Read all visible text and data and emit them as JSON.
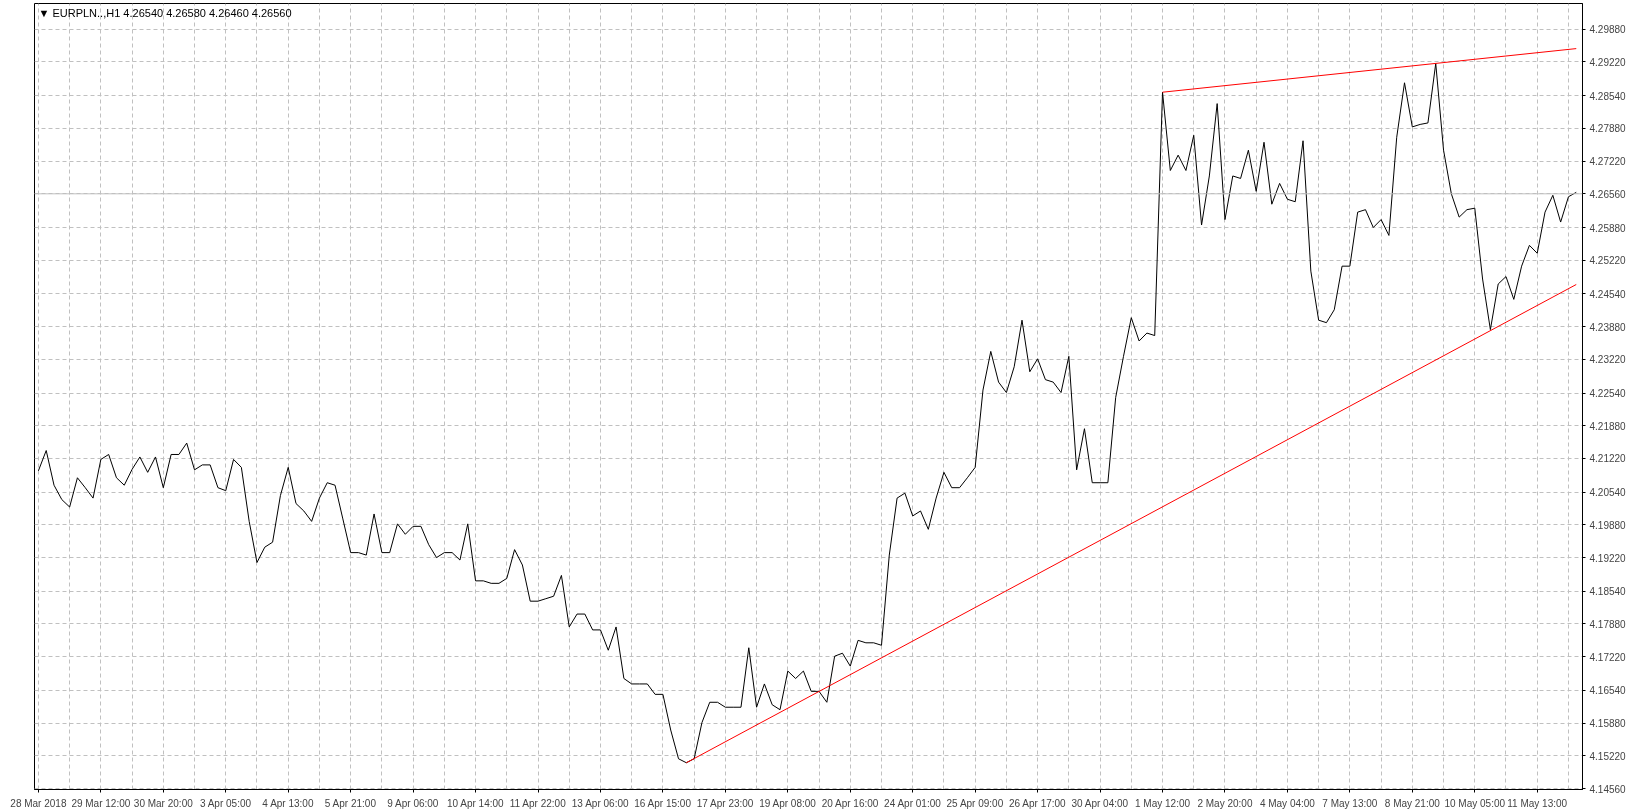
{
  "chart_data": {
    "type": "line",
    "title": "▼ EURPLN..,H1  4.26540 4.26580 4.26460 4.26560",
    "ylim": [
      4.1454,
      4.304
    ],
    "yticks": [
      {
        "value": 4.1456,
        "label": "4.14560"
      },
      {
        "value": 4.1522,
        "label": "4.15220"
      },
      {
        "value": 4.1588,
        "label": "4.15880"
      },
      {
        "value": 4.1654,
        "label": "4.16540"
      },
      {
        "value": 4.1722,
        "label": "4.17220"
      },
      {
        "value": 4.1788,
        "label": "4.17880"
      },
      {
        "value": 4.1854,
        "label": "4.18540"
      },
      {
        "value": 4.1922,
        "label": "4.19220"
      },
      {
        "value": 4.1988,
        "label": "4.19880"
      },
      {
        "value": 4.2054,
        "label": "4.20540"
      },
      {
        "value": 4.2122,
        "label": "4.21220"
      },
      {
        "value": 4.2188,
        "label": "4.21880"
      },
      {
        "value": 4.2254,
        "label": "4.22540"
      },
      {
        "value": 4.2322,
        "label": "4.23220"
      },
      {
        "value": 4.2388,
        "label": "4.23880"
      },
      {
        "value": 4.2454,
        "label": "4.24540"
      },
      {
        "value": 4.2522,
        "label": "4.25220"
      },
      {
        "value": 4.2588,
        "label": "4.25880"
      },
      {
        "value": 4.2656,
        "label": "4.26560"
      },
      {
        "value": 4.2722,
        "label": "4.27220"
      },
      {
        "value": 4.2788,
        "label": "4.27880"
      },
      {
        "value": 4.2854,
        "label": "4.28540"
      },
      {
        "value": 4.2922,
        "label": "4.29220"
      },
      {
        "value": 4.2988,
        "label": "4.29880"
      }
    ],
    "grid": true,
    "ref_lines": [
      {
        "axis": "y",
        "value": 4.2656,
        "color": "#c0c0c0"
      }
    ],
    "categories": [
      "28 Mar 2018",
      null,
      null,
      null,
      null,
      null,
      null,
      null,
      "29 Mar 12:00",
      null,
      null,
      null,
      null,
      null,
      null,
      null,
      "30 Mar 20:00",
      null,
      null,
      null,
      null,
      null,
      null,
      null,
      "3 Apr 05:00",
      null,
      null,
      null,
      null,
      null,
      null,
      null,
      "4 Apr 13:00",
      null,
      null,
      null,
      null,
      null,
      null,
      null,
      "5 Apr 21:00",
      null,
      null,
      null,
      null,
      null,
      null,
      null,
      "9 Apr 06:00",
      null,
      null,
      null,
      null,
      null,
      null,
      null,
      "10 Apr 14:00",
      null,
      null,
      null,
      null,
      null,
      null,
      null,
      "11 Apr 22:00",
      null,
      null,
      null,
      null,
      null,
      null,
      null,
      "13 Apr 06:00",
      null,
      null,
      null,
      null,
      null,
      null,
      null,
      "16 Apr 15:00",
      null,
      null,
      null,
      null,
      null,
      null,
      null,
      "17 Apr 23:00",
      null,
      null,
      null,
      null,
      null,
      null,
      null,
      "19 Apr 08:00",
      null,
      null,
      null,
      null,
      null,
      null,
      null,
      "20 Apr 16:00",
      null,
      null,
      null,
      null,
      null,
      null,
      null,
      "24 Apr 01:00",
      null,
      null,
      null,
      null,
      null,
      null,
      null,
      "25 Apr 09:00",
      null,
      null,
      null,
      null,
      null,
      null,
      null,
      "26 Apr 17:00",
      null,
      null,
      null,
      null,
      null,
      null,
      null,
      "30 Apr 04:00",
      null,
      null,
      null,
      null,
      null,
      null,
      null,
      "1 May 12:00",
      null,
      null,
      null,
      null,
      null,
      null,
      null,
      "2 May 20:00",
      null,
      null,
      null,
      null,
      null,
      null,
      null,
      "4 May 04:00",
      null,
      null,
      null,
      null,
      null,
      null,
      null,
      "7 May 13:00",
      null,
      null,
      null,
      null,
      null,
      null,
      null,
      "8 May 21:00",
      null,
      null,
      null,
      null,
      null,
      null,
      null,
      "10 May 05:00",
      null,
      null,
      null,
      null,
      null,
      null,
      null,
      "11 May 13:00",
      null,
      null,
      null,
      null,
      null
    ],
    "series": [
      {
        "color": "#000000",
        "values": [
          4.2097,
          4.2138,
          4.2068,
          4.2039,
          4.2024,
          4.2083,
          4.2063,
          4.2042,
          4.212,
          4.213,
          4.2083,
          4.2068,
          4.21,
          4.2125,
          4.2094,
          4.2125,
          4.2063,
          4.213,
          4.213,
          4.2153,
          4.2099,
          4.2109,
          4.2109,
          4.2063,
          4.2057,
          4.212,
          4.2104,
          4.1995,
          4.1912,
          4.1943,
          4.1953,
          4.2047,
          4.2104,
          4.2031,
          4.2016,
          4.1995,
          4.2042,
          4.2073,
          4.2068,
          4.2,
          4.1932,
          4.1932,
          4.1927,
          4.201,
          4.1932,
          4.1932,
          4.199,
          4.1969,
          4.1985,
          4.1985,
          4.1948,
          4.1922,
          4.1932,
          4.1932,
          4.1917,
          4.199,
          4.1875,
          4.1875,
          4.187,
          4.187,
          4.188,
          4.1938,
          4.1907,
          4.1834,
          4.1834,
          4.1839,
          4.1844,
          4.1886,
          4.1782,
          4.1808,
          4.1808,
          4.1776,
          4.1776,
          4.1735,
          4.1782,
          4.1678,
          4.1667,
          4.1667,
          4.1667,
          4.1646,
          4.1646,
          4.1574,
          4.1516,
          4.1508,
          4.1516,
          4.1589,
          4.163,
          4.163,
          4.162,
          4.162,
          4.162,
          4.174,
          4.162,
          4.1667,
          4.1625,
          4.1615,
          4.1693,
          4.1678,
          4.1693,
          4.1652,
          4.1652,
          4.163,
          4.1723,
          4.1729,
          4.1703,
          4.1755,
          4.175,
          4.175,
          4.1745,
          4.1927,
          4.2042,
          4.2052,
          4.2006,
          4.2016,
          4.1979,
          4.2042,
          4.2094,
          4.2063,
          4.2063,
          4.2083,
          4.2104,
          4.226,
          4.2338,
          4.2276,
          4.2255,
          4.2307,
          4.2401,
          4.2297,
          4.2323,
          4.2281,
          4.2276,
          4.2255,
          4.2328,
          4.2099,
          4.2182,
          4.2073,
          4.2073,
          4.2073,
          4.2245,
          4.2328,
          4.2406,
          4.2359,
          4.2375,
          4.237,
          4.2861,
          4.2703,
          4.2734,
          4.2703,
          4.2774,
          4.2593,
          4.2692,
          4.2838,
          4.2604,
          4.2692,
          4.2687,
          4.2744,
          4.2661,
          4.276,
          4.2635,
          4.2677,
          4.2645,
          4.264,
          4.2763,
          4.25,
          4.2401,
          4.2396,
          4.2422,
          4.251,
          4.251,
          4.2619,
          4.2624,
          4.2588,
          4.2604,
          4.2572,
          4.277,
          4.288,
          4.2791,
          4.2796,
          4.2799,
          4.2919,
          4.2744,
          4.2656,
          4.2609,
          4.2624,
          4.2627,
          4.2484,
          4.2382,
          4.2474,
          4.2489,
          4.2443,
          4.251,
          4.2552,
          4.2536,
          4.2619,
          4.2653,
          4.2599,
          4.265,
          4.2659
        ]
      },
      {
        "color": "#ff0000",
        "values": [
          null,
          null,
          null,
          null,
          null,
          null,
          null,
          null,
          null,
          null,
          null,
          null,
          null,
          null,
          null,
          null,
          null,
          null,
          null,
          null,
          null,
          null,
          null,
          null,
          null,
          null,
          null,
          null,
          null,
          null,
          null,
          null,
          null,
          null,
          null,
          null,
          null,
          null,
          null,
          null,
          null,
          null,
          null,
          null,
          null,
          null,
          null,
          null,
          null,
          null,
          null,
          null,
          null,
          null,
          null,
          null,
          null,
          null,
          null,
          null,
          null,
          null,
          null,
          null,
          null,
          null,
          null,
          null,
          null,
          null,
          null,
          null,
          null,
          null,
          null,
          null,
          null,
          null,
          null,
          null,
          null,
          null,
          null,
          null,
          null,
          null,
          null,
          null,
          null,
          null,
          null,
          null,
          null,
          null,
          null,
          null,
          null,
          null,
          null,
          null,
          null,
          null,
          null,
          null,
          null,
          null,
          null,
          null,
          null,
          null,
          null,
          null,
          null,
          null,
          null,
          null,
          null,
          null,
          null,
          null,
          null,
          null,
          null,
          null,
          null,
          null,
          null,
          null,
          null,
          null,
          null,
          null,
          null,
          null,
          null,
          null,
          null,
          null,
          null,
          null,
          null,
          null,
          null,
          null,
          4.2861,
          null,
          null,
          null,
          null,
          null,
          null,
          null,
          null,
          null,
          null,
          null,
          null,
          null,
          null,
          null,
          null,
          null,
          null,
          null,
          null,
          null,
          null,
          null,
          null,
          null,
          null,
          null,
          null,
          null,
          null,
          null,
          null,
          null,
          null,
          null,
          null,
          null,
          null,
          null,
          null,
          null,
          null,
          null,
          null,
          null,
          null,
          null,
          null,
          null,
          null,
          null,
          null,
          4.2949
        ]
      },
      {
        "color": "#ff0000",
        "values": [
          null,
          null,
          null,
          null,
          null,
          null,
          null,
          null,
          null,
          null,
          null,
          null,
          null,
          null,
          null,
          null,
          null,
          null,
          null,
          null,
          null,
          null,
          null,
          null,
          null,
          null,
          null,
          null,
          null,
          null,
          null,
          null,
          null,
          null,
          null,
          null,
          null,
          null,
          null,
          null,
          null,
          null,
          null,
          null,
          null,
          null,
          null,
          null,
          null,
          null,
          null,
          null,
          null,
          null,
          null,
          null,
          null,
          null,
          null,
          null,
          null,
          null,
          null,
          null,
          null,
          null,
          null,
          null,
          null,
          null,
          null,
          null,
          null,
          null,
          null,
          null,
          null,
          null,
          null,
          null,
          null,
          null,
          null,
          4.1508,
          null,
          null,
          null,
          null,
          null,
          null,
          null,
          null,
          null,
          null,
          null,
          null,
          null,
          null,
          null,
          null,
          null,
          null,
          null,
          null,
          null,
          null,
          null,
          null,
          null,
          null,
          null,
          null,
          null,
          null,
          null,
          null,
          null,
          null,
          null,
          null,
          null,
          null,
          null,
          null,
          null,
          null,
          null,
          null,
          null,
          null,
          null,
          null,
          null,
          null,
          null,
          null,
          null,
          null,
          null,
          null,
          null,
          null,
          null,
          null,
          null,
          null,
          null,
          null,
          null,
          null,
          null,
          null,
          null,
          null,
          null,
          null,
          null,
          null,
          null,
          null,
          null,
          null,
          null,
          null,
          null,
          null,
          null,
          null,
          null,
          null,
          null,
          null,
          null,
          null,
          null,
          null,
          null,
          null,
          null,
          null,
          null,
          null,
          null,
          null,
          null,
          null,
          null,
          null,
          null,
          null,
          null,
          null,
          null,
          null,
          null,
          null,
          null,
          4.2473
        ]
      }
    ]
  }
}
